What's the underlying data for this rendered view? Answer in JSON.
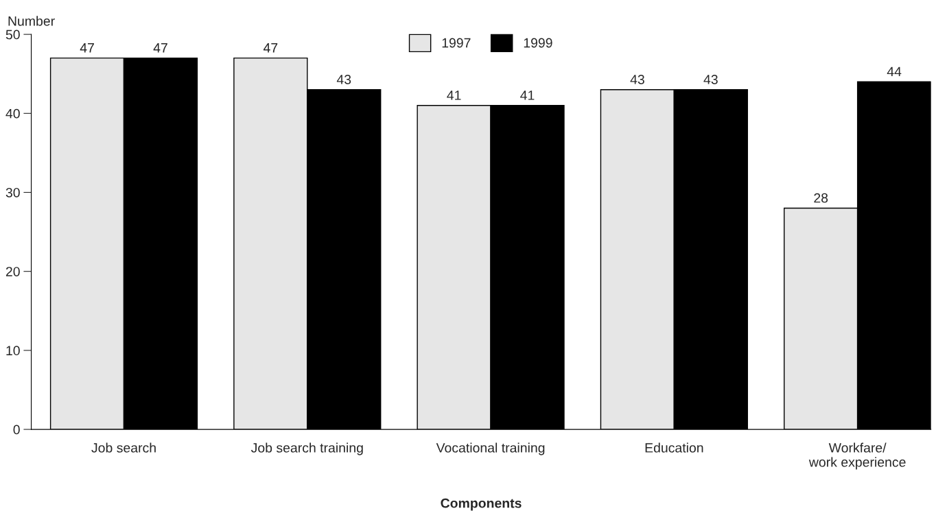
{
  "chart_data": {
    "type": "bar",
    "xlabel": "Components",
    "ylabel": "Number",
    "categories": [
      "Job search",
      "Job search training",
      "Vocational training",
      "Education",
      "Workfare/\nwork experience"
    ],
    "series": [
      {
        "name": "1997",
        "color": "#e6e6e6",
        "values": [
          47,
          47,
          41,
          43,
          28
        ]
      },
      {
        "name": "1999",
        "color": "#000000",
        "values": [
          47,
          43,
          41,
          43,
          44
        ]
      }
    ],
    "ylim": [
      0,
      50
    ],
    "yticks": [
      0,
      10,
      20,
      30,
      40,
      50
    ],
    "grid": false,
    "legend": "top",
    "data_labels": true
  }
}
